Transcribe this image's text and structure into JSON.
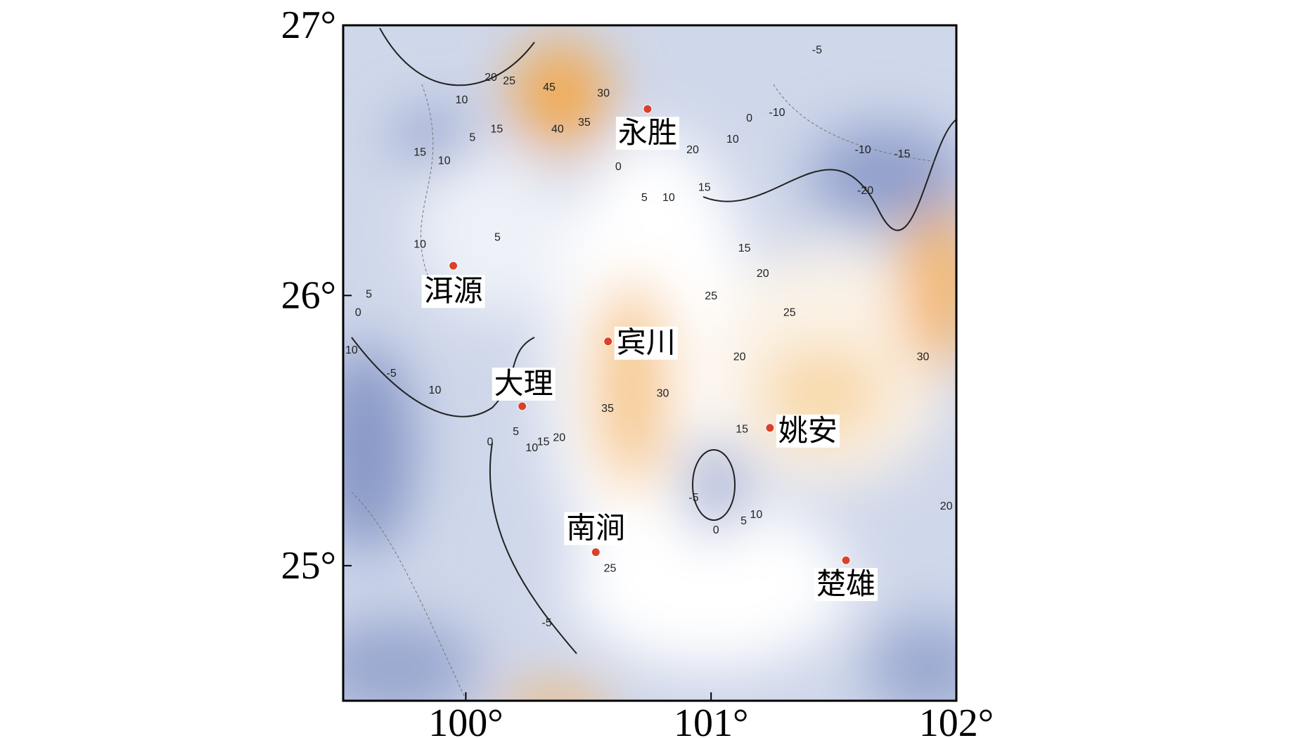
{
  "map": {
    "xlim": [
      99.5,
      102
    ],
    "ylim": [
      24.5,
      27
    ],
    "xticks": [
      {
        "value": 100,
        "label": "100°"
      },
      {
        "value": 101,
        "label": "101°"
      },
      {
        "value": 102,
        "label": "102°"
      }
    ],
    "yticks": [
      {
        "value": 25,
        "label": "25°"
      },
      {
        "value": 26,
        "label": "26°"
      },
      {
        "value": 27,
        "label": "27°"
      }
    ],
    "places": [
      {
        "label": "永胜",
        "lon": 100.741,
        "lat": 26.69
      },
      {
        "label": "洱源",
        "lon": 99.949,
        "lat": 26.11
      },
      {
        "label": "宾川",
        "lon": 100.58,
        "lat": 25.83
      },
      {
        "label": "大理",
        "lon": 100.23,
        "lat": 25.59
      },
      {
        "label": "姚安",
        "lon": 101.24,
        "lat": 25.51
      },
      {
        "label": "南涧",
        "lon": 100.53,
        "lat": 25.05
      },
      {
        "label": "楚雄",
        "lon": 101.55,
        "lat": 25.02
      }
    ],
    "contour_labels": [
      {
        "value": 20,
        "lon": 100.102,
        "lat": 26.806
      },
      {
        "value": 25,
        "lon": 100.177,
        "lat": 26.793
      },
      {
        "value": 45,
        "lon": 100.34,
        "lat": 26.769
      },
      {
        "value": 30,
        "lon": 100.561,
        "lat": 26.747
      },
      {
        "value": 40,
        "lon": 100.374,
        "lat": 26.614
      },
      {
        "value": 35,
        "lon": 100.483,
        "lat": 26.639
      },
      {
        "value": 10,
        "lon": 99.983,
        "lat": 26.722
      },
      {
        "value": 15,
        "lon": 100.126,
        "lat": 26.614
      },
      {
        "value": 5,
        "lon": 100.027,
        "lat": 26.583
      },
      {
        "value": 15,
        "lon": 99.813,
        "lat": 26.528
      },
      {
        "value": 10,
        "lon": 99.912,
        "lat": 26.497
      },
      {
        "value": 0,
        "lon": 100.622,
        "lat": 26.475
      },
      {
        "value": 5,
        "lon": 100.728,
        "lat": 26.361
      },
      {
        "value": 10,
        "lon": 100.827,
        "lat": 26.361
      },
      {
        "value": 20,
        "lon": 100.925,
        "lat": 26.537
      },
      {
        "value": 15,
        "lon": 100.973,
        "lat": 26.398
      },
      {
        "value": 10,
        "lon": 101.088,
        "lat": 26.577
      },
      {
        "value": 0,
        "lon": 101.156,
        "lat": 26.654
      },
      {
        "value": -10,
        "lon": 101.269,
        "lat": 26.676
      },
      {
        "value": -5,
        "lon": 101.432,
        "lat": 26.907
      },
      {
        "value": -10,
        "lon": 101.619,
        "lat": 26.537
      },
      {
        "value": -15,
        "lon": 101.779,
        "lat": 26.522
      },
      {
        "value": -20,
        "lon": 101.629,
        "lat": 26.386
      },
      {
        "value": 10,
        "lon": 99.813,
        "lat": 26.188
      },
      {
        "value": 5,
        "lon": 100.129,
        "lat": 26.213
      },
      {
        "value": 15,
        "lon": 101.136,
        "lat": 26.173
      },
      {
        "value": 20,
        "lon": 101.211,
        "lat": 26.08
      },
      {
        "value": 25,
        "lon": 101.0,
        "lat": 25.997
      },
      {
        "value": 25,
        "lon": 101.32,
        "lat": 25.935
      },
      {
        "value": 5,
        "lon": 99.605,
        "lat": 26.003
      },
      {
        "value": 0,
        "lon": 99.561,
        "lat": 25.935
      },
      {
        "value": 10,
        "lon": 99.534,
        "lat": 25.796
      },
      {
        "value": -5,
        "lon": 99.697,
        "lat": 25.71
      },
      {
        "value": 10,
        "lon": 99.874,
        "lat": 25.648
      },
      {
        "value": 20,
        "lon": 101.116,
        "lat": 25.772
      },
      {
        "value": 30,
        "lon": 101.864,
        "lat": 25.772
      },
      {
        "value": 30,
        "lon": 100.803,
        "lat": 25.636
      },
      {
        "value": 35,
        "lon": 100.578,
        "lat": 25.58
      },
      {
        "value": 5,
        "lon": 100.204,
        "lat": 25.494
      },
      {
        "value": 0,
        "lon": 100.099,
        "lat": 25.457
      },
      {
        "value": 15,
        "lon": 100.316,
        "lat": 25.457
      },
      {
        "value": 10,
        "lon": 100.269,
        "lat": 25.435
      },
      {
        "value": 20,
        "lon": 100.381,
        "lat": 25.472
      },
      {
        "value": 15,
        "lon": 101.126,
        "lat": 25.503
      },
      {
        "value": -5,
        "lon": 100.929,
        "lat": 25.25
      },
      {
        "value": 10,
        "lon": 101.184,
        "lat": 25.188
      },
      {
        "value": 5,
        "lon": 101.133,
        "lat": 25.164
      },
      {
        "value": 0,
        "lon": 101.02,
        "lat": 25.13
      },
      {
        "value": 25,
        "lon": 100.588,
        "lat": 24.988
      },
      {
        "value": 20,
        "lon": 101.959,
        "lat": 25.219
      },
      {
        "value": -5,
        "lon": 100.33,
        "lat": 24.787
      }
    ]
  }
}
